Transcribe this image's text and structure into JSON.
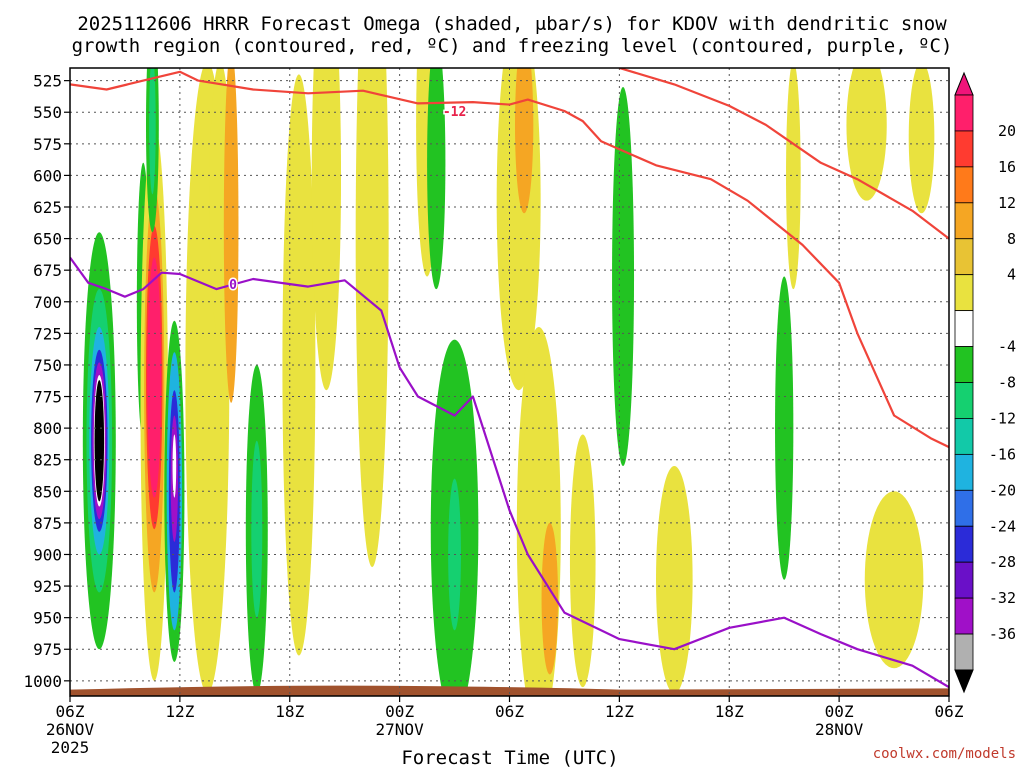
{
  "chart_data": {
    "type": "heatmap",
    "title_line1": "2025112606 HRRR Forecast Omega (shaded, μbar/s) for KDOV with dendritic snow",
    "title_line2": "growth region (contoured, red, ºC) and freezing level (contoured, purple, ºC)",
    "xlabel": "Forecast Time (UTC)",
    "credit": "coolwx.com/models",
    "x_range_hours": [
      0,
      48
    ],
    "y_range_mb": [
      515,
      1012
    ],
    "y_ticks": [
      "525",
      "550",
      "575",
      "600",
      "625",
      "650",
      "675",
      "700",
      "725",
      "750",
      "775",
      "800",
      "825",
      "850",
      "875",
      "900",
      "925",
      "950",
      "975",
      "1000"
    ],
    "x_ticks": [
      {
        "h": 0,
        "label": "06Z",
        "sub1": "26NOV",
        "sub2": "2025"
      },
      {
        "h": 6,
        "label": "12Z",
        "sub1": "",
        "sub2": ""
      },
      {
        "h": 12,
        "label": "18Z",
        "sub1": "",
        "sub2": ""
      },
      {
        "h": 18,
        "label": "00Z",
        "sub1": "27NOV",
        "sub2": ""
      },
      {
        "h": 24,
        "label": "06Z",
        "sub1": "",
        "sub2": ""
      },
      {
        "h": 30,
        "label": "12Z",
        "sub1": "",
        "sub2": ""
      },
      {
        "h": 36,
        "label": "18Z",
        "sub1": "",
        "sub2": ""
      },
      {
        "h": 42,
        "label": "00Z",
        "sub1": "28NOV",
        "sub2": ""
      },
      {
        "h": 48,
        "label": "06Z",
        "sub1": "",
        "sub2": ""
      }
    ],
    "colorbar": {
      "labels": [
        "20",
        "16",
        "12",
        "8",
        "4",
        "-4",
        "-8",
        "-12",
        "-16",
        "-20",
        "-24",
        "-28",
        "-32",
        "-36"
      ],
      "colors": [
        "#ff1f6b",
        "#ff3b30",
        "#ff7a1a",
        "#f5a623",
        "#e8c334",
        "#e9e23f",
        "#ffffff",
        "#22c322",
        "#15d070",
        "#12c9a8",
        "#1fb3e0",
        "#2f6fe8",
        "#2b2bd8",
        "#6a10c8",
        "#a010c8",
        "#b0b0b0"
      ],
      "top_color": "#f0147a",
      "bottom_color": "#000000"
    },
    "omega_blobs": [
      {
        "h": 1.6,
        "p": 810,
        "rh": 0.9,
        "rp": 165,
        "color": "#22c322"
      },
      {
        "h": 1.6,
        "p": 810,
        "rh": 0.7,
        "rp": 120,
        "color": "#15d070"
      },
      {
        "h": 1.6,
        "p": 810,
        "rh": 0.55,
        "rp": 90,
        "color": "#1fb3e0"
      },
      {
        "h": 1.6,
        "p": 810,
        "rh": 0.45,
        "rp": 72,
        "color": "#2b2bd8"
      },
      {
        "h": 1.6,
        "p": 810,
        "rh": 0.38,
        "rp": 62,
        "color": "#a010c8"
      },
      {
        "h": 1.6,
        "p": 810,
        "rh": 0.3,
        "rp": 52,
        "color": "#ffffff"
      },
      {
        "h": 1.6,
        "p": 810,
        "rh": 0.26,
        "rp": 48,
        "color": "#000000"
      },
      {
        "h": 4.0,
        "p": 700,
        "rh": 0.35,
        "rp": 110,
        "color": "#22c322"
      },
      {
        "h": 4.6,
        "p": 780,
        "rh": 0.75,
        "rp": 220,
        "color": "#e9e23f"
      },
      {
        "h": 4.6,
        "p": 770,
        "rh": 0.55,
        "rp": 160,
        "color": "#f5a623"
      },
      {
        "h": 4.6,
        "p": 760,
        "rh": 0.45,
        "rp": 120,
        "color": "#ff3b30"
      },
      {
        "h": 4.6,
        "p": 760,
        "rh": 0.38,
        "rp": 95,
        "color": "#ff1f6b"
      },
      {
        "h": 5.7,
        "p": 850,
        "rh": 0.55,
        "rp": 135,
        "color": "#22c322"
      },
      {
        "h": 5.7,
        "p": 850,
        "rh": 0.42,
        "rp": 110,
        "color": "#1fb3e0"
      },
      {
        "h": 5.7,
        "p": 850,
        "rh": 0.3,
        "rp": 80,
        "color": "#2b2bd8"
      },
      {
        "h": 5.7,
        "p": 840,
        "rh": 0.2,
        "rp": 50,
        "color": "#a010c8"
      },
      {
        "h": 5.7,
        "p": 830,
        "rh": 0.1,
        "rp": 25,
        "color": "#ffffff"
      },
      {
        "h": 4.5,
        "p": 560,
        "rh": 0.35,
        "rp": 85,
        "color": "#22c322"
      },
      {
        "h": 4.5,
        "p": 560,
        "rh": 0.18,
        "rp": 55,
        "color": "#15d070"
      },
      {
        "h": 7.5,
        "p": 760,
        "rh": 1.2,
        "rp": 250,
        "color": "#e9e23f"
      },
      {
        "h": 8.2,
        "p": 620,
        "rh": 0.6,
        "rp": 110,
        "color": "#e9e23f"
      },
      {
        "h": 8.8,
        "p": 640,
        "rh": 0.4,
        "rp": 140,
        "color": "#f5a623"
      },
      {
        "h": 10.2,
        "p": 880,
        "rh": 0.6,
        "rp": 130,
        "color": "#22c322"
      },
      {
        "h": 10.2,
        "p": 880,
        "rh": 0.3,
        "rp": 70,
        "color": "#15d070"
      },
      {
        "h": 12.5,
        "p": 750,
        "rh": 0.9,
        "rp": 230,
        "color": "#e9e23f"
      },
      {
        "h": 14.0,
        "p": 600,
        "rh": 0.8,
        "rp": 170,
        "color": "#e9e23f"
      },
      {
        "h": 16.5,
        "p": 650,
        "rh": 0.9,
        "rp": 260,
        "color": "#e9e23f"
      },
      {
        "h": 19.5,
        "p": 560,
        "rh": 0.6,
        "rp": 120,
        "color": "#e9e23f"
      },
      {
        "h": 20.0,
        "p": 590,
        "rh": 0.5,
        "rp": 100,
        "color": "#22c322"
      },
      {
        "h": 21.0,
        "p": 880,
        "rh": 1.3,
        "rp": 150,
        "color": "#22c322"
      },
      {
        "h": 21.0,
        "p": 900,
        "rh": 0.35,
        "rp": 60,
        "color": "#15d070"
      },
      {
        "h": 24.5,
        "p": 620,
        "rh": 1.2,
        "rp": 150,
        "color": "#e9e23f"
      },
      {
        "h": 24.8,
        "p": 560,
        "rh": 0.5,
        "rp": 70,
        "color": "#f5a623"
      },
      {
        "h": 25.6,
        "p": 880,
        "rh": 1.2,
        "rp": 160,
        "color": "#e9e23f"
      },
      {
        "h": 26.2,
        "p": 935,
        "rh": 0.45,
        "rp": 60,
        "color": "#f5a623"
      },
      {
        "h": 28.0,
        "p": 905,
        "rh": 0.7,
        "rp": 100,
        "color": "#e9e23f"
      },
      {
        "h": 30.2,
        "p": 680,
        "rh": 0.6,
        "rp": 150,
        "color": "#22c322"
      },
      {
        "h": 33.0,
        "p": 920,
        "rh": 1.0,
        "rp": 90,
        "color": "#e9e23f"
      },
      {
        "h": 39.0,
        "p": 800,
        "rh": 0.5,
        "rp": 120,
        "color": "#22c322"
      },
      {
        "h": 39.5,
        "p": 600,
        "rh": 0.4,
        "rp": 90,
        "color": "#e9e23f"
      },
      {
        "h": 43.5,
        "p": 560,
        "rh": 1.1,
        "rp": 60,
        "color": "#e9e23f"
      },
      {
        "h": 45.0,
        "p": 920,
        "rh": 1.6,
        "rp": 70,
        "color": "#e9e23f"
      },
      {
        "h": 46.5,
        "p": 570,
        "rh": 0.7,
        "rp": 60,
        "color": "#e9e23f"
      }
    ],
    "dgz_contour": {
      "label": "-12",
      "label_at": [
        21.0,
        553
      ],
      "points": [
        [
          0,
          528
        ],
        [
          2,
          532
        ],
        [
          4,
          525
        ],
        [
          6,
          518
        ],
        [
          7,
          525
        ],
        [
          10,
          532
        ],
        [
          13,
          535
        ],
        [
          16,
          533
        ],
        [
          19,
          543
        ],
        [
          22,
          542
        ],
        [
          24,
          544
        ],
        [
          25,
          540
        ],
        [
          27,
          549
        ],
        [
          28,
          557
        ],
        [
          29,
          573
        ],
        [
          32,
          592
        ],
        [
          35,
          603
        ],
        [
          37,
          620
        ],
        [
          40,
          655
        ],
        [
          42,
          685
        ],
        [
          43,
          725
        ],
        [
          45,
          790
        ],
        [
          47,
          808
        ],
        [
          48,
          815
        ]
      ]
    },
    "dgz_contour_upper": {
      "points": [
        [
          30,
          515
        ],
        [
          33,
          528
        ],
        [
          36,
          545
        ],
        [
          38,
          560
        ],
        [
          41,
          590
        ],
        [
          43,
          603
        ],
        [
          46,
          628
        ],
        [
          48,
          650
        ]
      ]
    },
    "freezing_contour": {
      "label": "0",
      "label_at": [
        8.9,
        690
      ],
      "points": [
        [
          0,
          665
        ],
        [
          1,
          685
        ],
        [
          2,
          690
        ],
        [
          3,
          696
        ],
        [
          4,
          690
        ],
        [
          5,
          677
        ],
        [
          6,
          678
        ],
        [
          8,
          690
        ],
        [
          10,
          682
        ],
        [
          13,
          688
        ],
        [
          15,
          683
        ],
        [
          17,
          707
        ],
        [
          18,
          752
        ],
        [
          19,
          775
        ],
        [
          21,
          790
        ],
        [
          22,
          775
        ],
        [
          24,
          865
        ],
        [
          25,
          900
        ],
        [
          27,
          946
        ],
        [
          30,
          967
        ],
        [
          33,
          975
        ],
        [
          36,
          958
        ],
        [
          39,
          950
        ],
        [
          41,
          963
        ],
        [
          43,
          975
        ],
        [
          46,
          988
        ],
        [
          48,
          1005
        ]
      ]
    }
  }
}
